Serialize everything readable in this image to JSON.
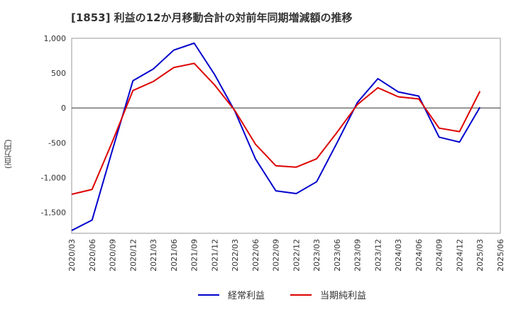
{
  "chart_data": {
    "type": "line",
    "title": "[1853]  利益の12か月移動合計の対前年同期増減額の推移",
    "ylabel": "(百万円)",
    "xlabel": "",
    "ylim": [
      -1800,
      1000
    ],
    "yticks": [
      1000,
      500,
      0,
      -500,
      -1000,
      -1500
    ],
    "ytick_labels": [
      "1,000",
      "500",
      "0",
      "-500",
      "-1,000",
      "-1,500"
    ],
    "categories": [
      "2020/03",
      "2020/06",
      "2020/09",
      "2020/12",
      "2021/03",
      "2021/06",
      "2021/09",
      "2021/12",
      "2022/03",
      "2022/06",
      "2022/09",
      "2022/12",
      "2023/03",
      "2023/06",
      "2023/09",
      "2023/12",
      "2024/03",
      "2024/06",
      "2024/09",
      "2024/12",
      "2025/03",
      "2025/06"
    ],
    "grid": true,
    "legend_position": "bottom",
    "series": [
      {
        "name": "経常利益",
        "color": "#0000cc",
        "values": [
          -1760,
          -1610,
          -600,
          390,
          560,
          830,
          930,
          480,
          -50,
          -730,
          -1190,
          -1230,
          -1060,
          -500,
          80,
          420,
          230,
          170,
          -420,
          -490,
          10,
          null
        ]
      },
      {
        "name": "当期純利益",
        "color": "#dd0000",
        "values": [
          -1240,
          -1170,
          -480,
          250,
          380,
          580,
          640,
          330,
          -40,
          -520,
          -830,
          -850,
          -730,
          -350,
          50,
          290,
          160,
          130,
          -290,
          -340,
          240,
          null
        ]
      }
    ]
  }
}
